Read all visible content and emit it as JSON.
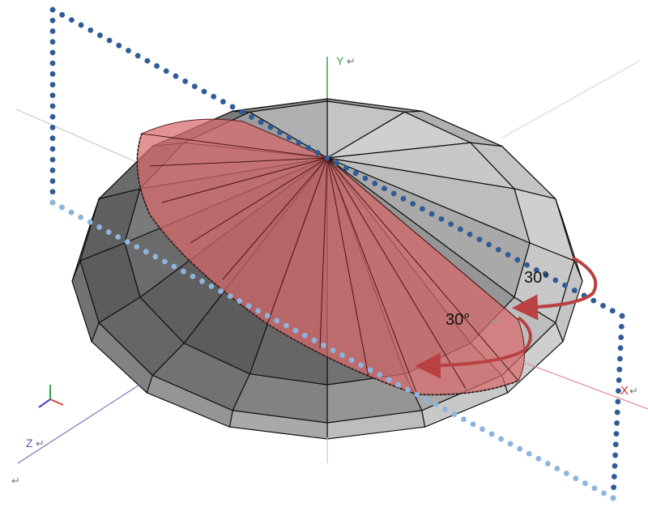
{
  "axes": {
    "y_label": "Y",
    "x_label": "X",
    "z_label": "Z",
    "return_mark": "↵",
    "y_color": "#2aa84a",
    "x_color": "#d98b8b",
    "z_color": "#7777bb"
  },
  "annotations": {
    "angle_outer": "30°",
    "angle_inner": "30°",
    "arrow_color": "#b94141"
  },
  "plane": {
    "dark_dot_color": "#2f5b96",
    "light_dot_color": "#8db4dc"
  },
  "solid": {
    "segments": 16,
    "highlight_color": "#d86a6a"
  }
}
